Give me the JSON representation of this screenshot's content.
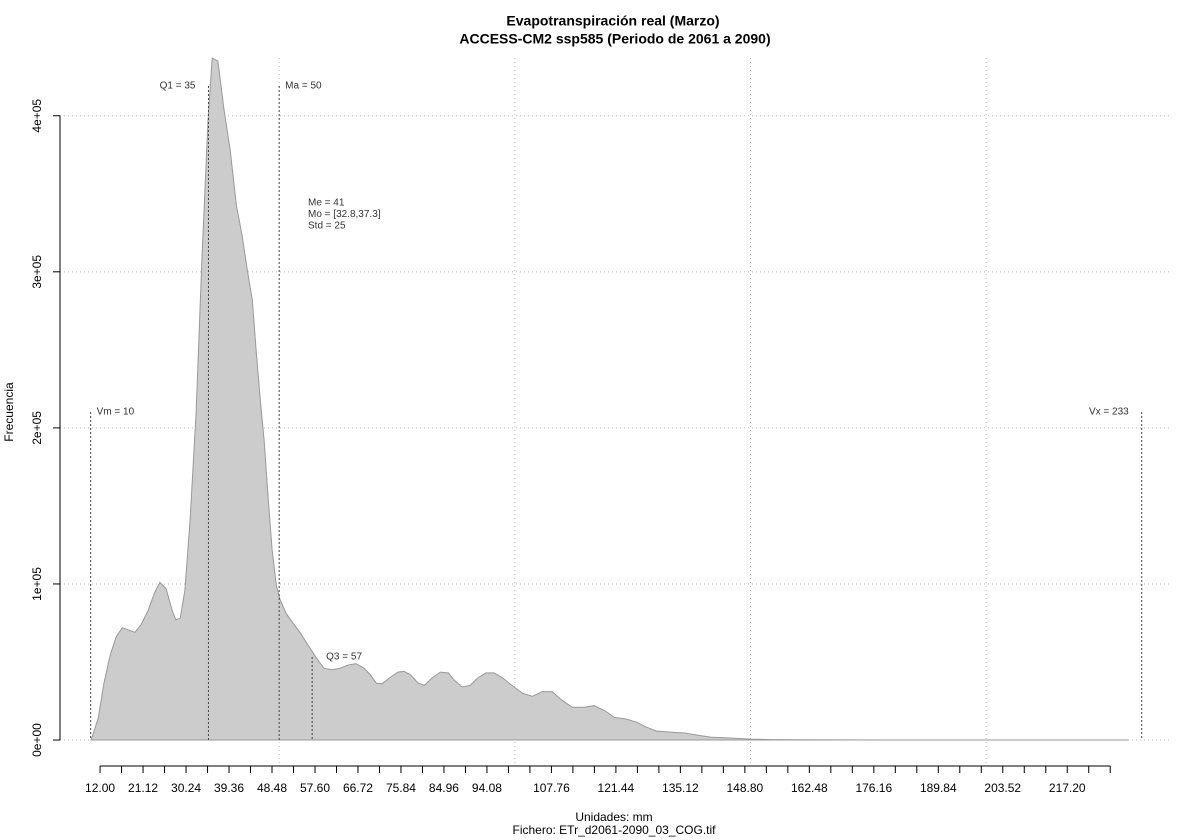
{
  "chart_data": {
    "type": "area",
    "title": "Evapotranspiración real (Marzo)",
    "subtitle": "ACCESS-CM2 ssp585 (Periodo de 2061 a 2090)",
    "x_label": "Unidades: mm",
    "caption": "Fichero: ETr_d2061-2090_03_COG.tif",
    "y_label": "Frecuencia",
    "color": "#cccccc",
    "x": [
      10.1,
      11.6,
      12.8,
      14.1,
      15.4,
      16.7,
      18,
      19.4,
      20.7,
      22.2,
      23.5,
      24.7,
      26,
      27.3,
      28.1,
      29,
      30,
      31.1,
      32.4,
      33.6,
      34.9,
      35.8,
      37,
      38.3,
      39.6,
      40.9,
      42.1,
      43.4,
      44.3,
      45.1,
      46,
      46.8,
      47.7,
      48.5,
      49.4,
      50.2,
      51.5,
      52.7,
      54.4,
      56.1,
      57.8,
      59.5,
      61.2,
      62.9,
      64.6,
      66.3,
      68,
      69.3,
      70.6,
      71.8,
      73.5,
      75.2,
      76.5,
      77.8,
      79.5,
      80.8,
      82.5,
      84.2,
      85.9,
      87.1,
      88.8,
      90.5,
      92.2,
      93.9,
      95.6,
      97.3,
      99.4,
      101.6,
      103.7,
      105.8,
      107.9,
      110,
      112.2,
      114.7,
      116.8,
      119,
      121.1,
      123.6,
      125.8,
      127.9,
      130,
      133,
      136,
      138.5,
      141.5,
      145.7,
      150,
      154.2,
      160.6,
      181.8,
      203,
      230.2
    ],
    "values": [
      0,
      14000,
      36000,
      54000,
      66000,
      72000,
      70500,
      69000,
      74000,
      83000,
      94000,
      101000,
      97000,
      83000,
      77000,
      78000,
      96000,
      141000,
      211000,
      308000,
      397000,
      437000,
      435000,
      404000,
      378000,
      343000,
      324000,
      298000,
      282000,
      250000,
      218000,
      192000,
      154000,
      122000,
      99000,
      90000,
      81000,
      76000,
      69000,
      61000,
      53000,
      46000,
      45000,
      46000,
      48000,
      49000,
      46000,
      42000,
      36500,
      36000,
      40000,
      43500,
      44000,
      42000,
      36500,
      35000,
      40000,
      43500,
      43000,
      38500,
      34000,
      35000,
      40000,
      43000,
      43000,
      40000,
      35000,
      30000,
      28000,
      31000,
      31000,
      25500,
      21000,
      21000,
      22000,
      19000,
      14500,
      13500,
      11500,
      8300,
      5800,
      5100,
      4500,
      3200,
      1900,
      1300,
      600,
      300,
      150,
      50,
      20,
      0
    ],
    "xlim": [
      3.5,
      239
    ],
    "ylim": [
      -16000,
      437000
    ],
    "xticks": [
      {
        "value": 12,
        "label": "12.00"
      },
      {
        "value": 16.56,
        "label": null
      },
      {
        "value": 21.12,
        "label": "21.12"
      },
      {
        "value": 25.68,
        "label": null
      },
      {
        "value": 30.24,
        "label": "30.24"
      },
      {
        "value": 34.8,
        "label": null
      },
      {
        "value": 39.36,
        "label": "39.36"
      },
      {
        "value": 43.92,
        "label": null
      },
      {
        "value": 48.48,
        "label": "48.48"
      },
      {
        "value": 53.04,
        "label": null
      },
      {
        "value": 57.6,
        "label": "57.60"
      },
      {
        "value": 62.16,
        "label": null
      },
      {
        "value": 66.72,
        "label": "66.72"
      },
      {
        "value": 71.28,
        "label": null
      },
      {
        "value": 75.84,
        "label": "75.84"
      },
      {
        "value": 80.4,
        "label": null
      },
      {
        "value": 84.96,
        "label": "84.96"
      },
      {
        "value": 89.52,
        "label": null
      },
      {
        "value": 94.08,
        "label": "94.08"
      },
      {
        "value": 98.64,
        "label": null
      },
      {
        "value": 103.2,
        "label": null
      },
      {
        "value": 107.76,
        "label": "107.76"
      },
      {
        "value": 112.32,
        "label": null
      },
      {
        "value": 116.88,
        "label": null
      },
      {
        "value": 121.44,
        "label": "121.44"
      },
      {
        "value": 126,
        "label": null
      },
      {
        "value": 130.56,
        "label": null
      },
      {
        "value": 135.12,
        "label": "135.12"
      },
      {
        "value": 139.68,
        "label": null
      },
      {
        "value": 144.24,
        "label": null
      },
      {
        "value": 148.8,
        "label": "148.80"
      },
      {
        "value": 153.36,
        "label": null
      },
      {
        "value": 157.92,
        "label": null
      },
      {
        "value": 162.48,
        "label": "162.48"
      },
      {
        "value": 167.04,
        "label": null
      },
      {
        "value": 171.6,
        "label": null
      },
      {
        "value": 176.16,
        "label": "176.16"
      },
      {
        "value": 180.72,
        "label": null
      },
      {
        "value": 185.28,
        "label": null
      },
      {
        "value": 189.84,
        "label": "189.84"
      },
      {
        "value": 194.4,
        "label": null
      },
      {
        "value": 198.96,
        "label": null
      },
      {
        "value": 203.52,
        "label": "203.52"
      },
      {
        "value": 208.08,
        "label": null
      },
      {
        "value": 212.64,
        "label": null
      },
      {
        "value": 217.2,
        "label": "217.20"
      },
      {
        "value": 221.76,
        "label": null
      },
      {
        "value": 226.32,
        "label": null
      }
    ],
    "yticks": [
      {
        "value": 0,
        "label": "0e+00"
      },
      {
        "value": 100000,
        "label": "1e+05"
      },
      {
        "value": 200000,
        "label": "2e+05"
      },
      {
        "value": 300000,
        "label": "3e+05"
      },
      {
        "value": 400000,
        "label": "4e+05"
      }
    ],
    "xgrid": [
      50,
      100,
      150,
      200
    ],
    "grid": true,
    "markers": [
      {
        "label": "Vm = 10",
        "value": 10
      },
      {
        "label": "Q1 = 35",
        "value": 35
      },
      {
        "label": "Ma = 50",
        "value": 50
      },
      {
        "label": "Q3 = 57",
        "value": 57
      },
      {
        "label": "Vx = 233",
        "value": 233
      }
    ],
    "stats": [
      "Me = 41",
      "Mo = [32.8,37.3]",
      "Std = 25"
    ]
  }
}
